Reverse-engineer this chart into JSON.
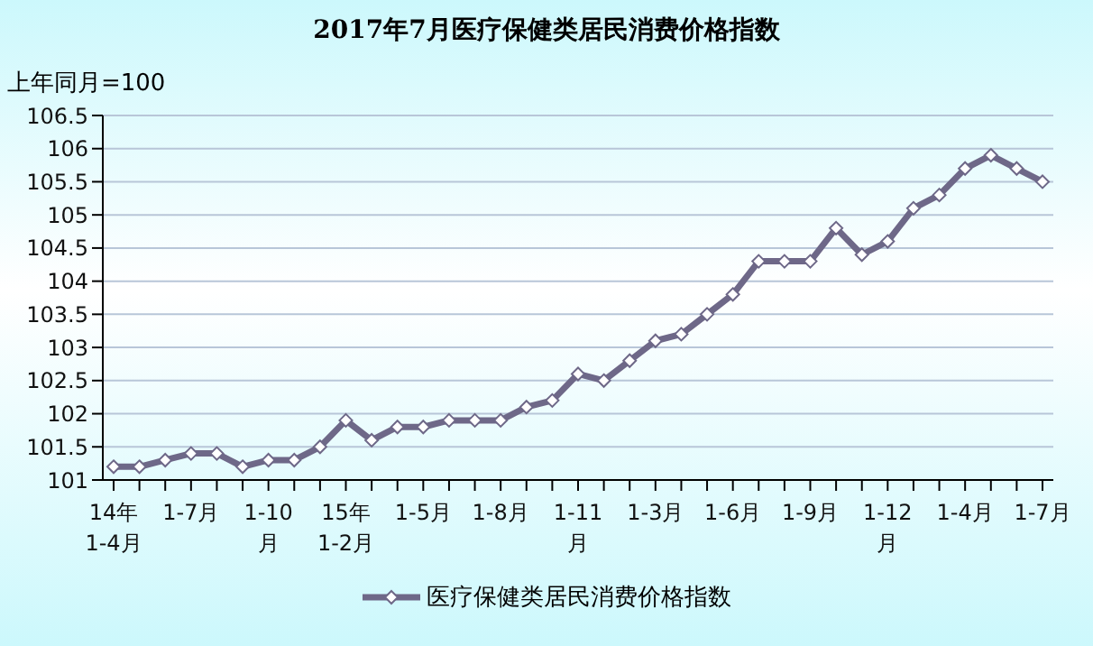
{
  "chart_data": {
    "type": "line",
    "title": "2017年7月医疗保健类居民消费价格指数",
    "ylabel": "上年同月=100",
    "categories": [
      "14年 1-4月",
      null,
      null,
      "1-7月",
      null,
      null,
      "1-10 月",
      null,
      null,
      "15年 1-2月",
      null,
      null,
      "1-5月",
      null,
      null,
      "1-8月",
      null,
      null,
      "1-11 月",
      null,
      null,
      "1-3月",
      null,
      null,
      "1-6月",
      null,
      null,
      "1-9月",
      null,
      null,
      "1-12 月",
      null,
      null,
      "1-4月",
      null,
      null,
      "1-7月"
    ],
    "series": [
      {
        "name": "医疗保健类居民消费价格指数",
        "color": "#6e6888",
        "values": [
          101.2,
          101.2,
          101.3,
          101.4,
          101.4,
          101.2,
          101.3,
          101.3,
          101.5,
          101.9,
          101.6,
          101.8,
          101.8,
          101.9,
          101.9,
          101.9,
          102.1,
          102.2,
          102.6,
          102.5,
          102.8,
          103.1,
          103.2,
          103.5,
          103.8,
          104.3,
          104.3,
          104.3,
          104.8,
          104.4,
          104.6,
          105.1,
          105.3,
          105.7,
          105.9,
          105.7,
          105.5
        ]
      }
    ],
    "ylim": [
      101,
      106.5
    ],
    "yticks": [
      101,
      101.5,
      102,
      102.5,
      103,
      103.5,
      104,
      104.5,
      105,
      105.5,
      106,
      106.5
    ],
    "grid": "y",
    "legend": "bottom",
    "marker": "diamond",
    "line_style": "solid"
  }
}
